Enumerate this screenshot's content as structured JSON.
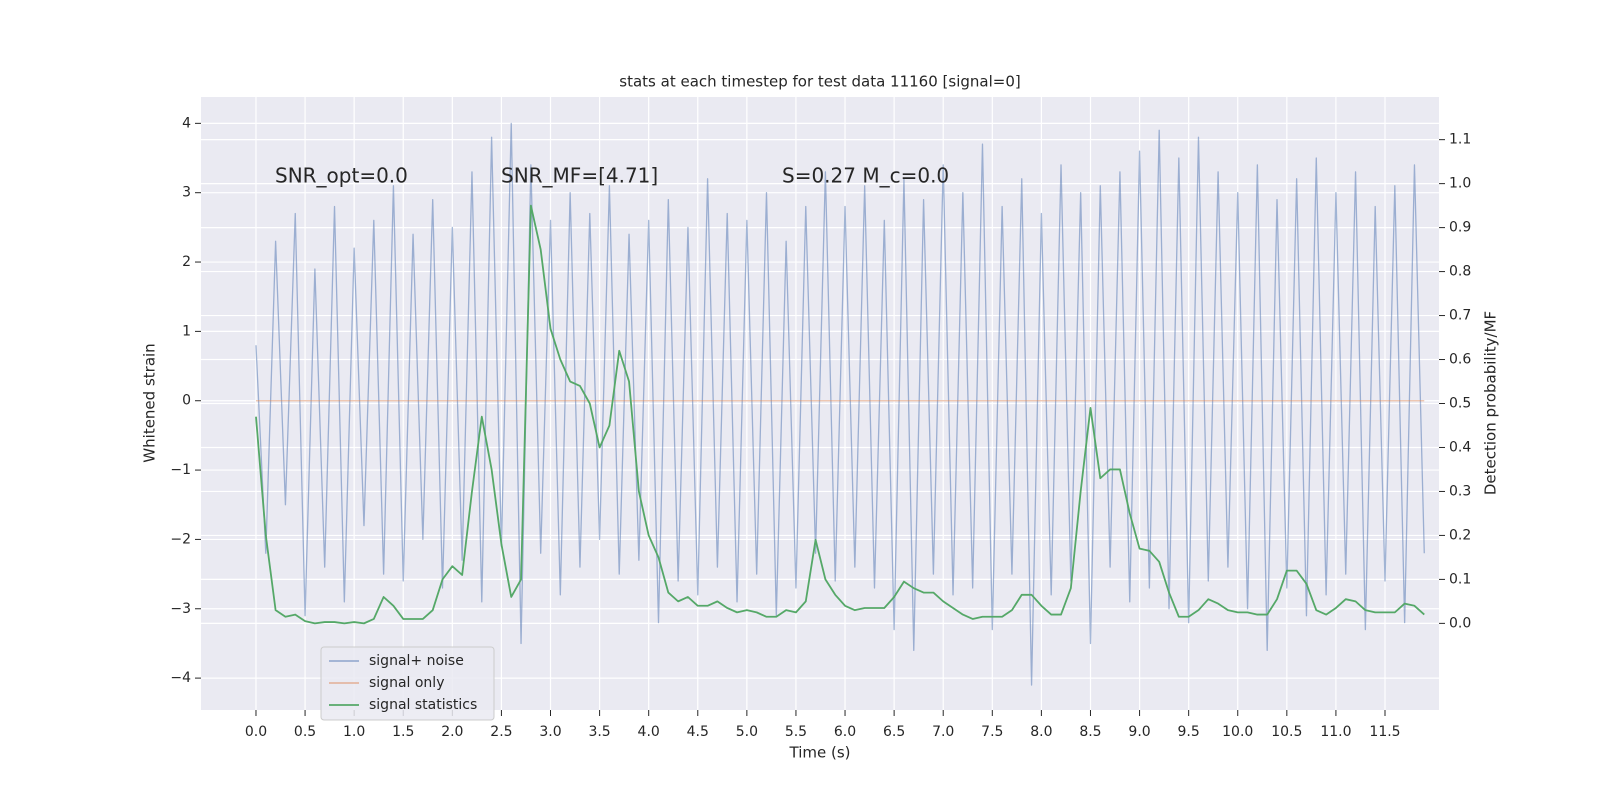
{
  "chart_data": {
    "type": "line",
    "title": "stats at each timestep for test data 11160 [signal=0]",
    "xlabel": "Time (s)",
    "ylabel": "Whitened strain",
    "y2label": "Detection probability/MF",
    "annotations": [
      "SNR_opt=0.0",
      "SNR_MF=[4.71]",
      "S=0.27   M_c=0.0"
    ],
    "x": [
      0,
      0.1,
      0.2,
      0.3,
      0.4,
      0.5,
      0.6,
      0.7,
      0.8,
      0.9,
      1,
      1.1,
      1.2,
      1.3,
      1.4,
      1.5,
      1.6,
      1.7,
      1.8,
      1.9,
      2,
      2.1,
      2.2,
      2.3,
      2.4,
      2.5,
      2.6,
      2.7,
      2.8,
      2.9,
      3,
      3.1,
      3.2,
      3.3,
      3.4,
      3.5,
      3.6,
      3.7,
      3.8,
      3.9,
      4,
      4.1,
      4.2,
      4.3,
      4.4,
      4.5,
      4.6,
      4.7,
      4.8,
      4.9,
      5,
      5.1,
      5.2,
      5.3,
      5.4,
      5.5,
      5.6,
      5.7,
      5.8,
      5.9,
      6,
      6.1,
      6.2,
      6.3,
      6.4,
      6.5,
      6.6,
      6.7,
      6.8,
      6.9,
      7,
      7.1,
      7.2,
      7.3,
      7.4,
      7.5,
      7.6,
      7.7,
      7.8,
      7.9,
      8,
      8.1,
      8.2,
      8.3,
      8.4,
      8.5,
      8.6,
      8.7,
      8.8,
      8.9,
      9,
      9.1,
      9.2,
      9.3,
      9.4,
      9.5,
      9.6,
      9.7,
      9.8,
      9.9,
      10,
      10.1,
      10.2,
      10.3,
      10.4,
      10.5,
      10.6,
      10.7,
      10.8,
      10.9,
      11,
      11.1,
      11.2,
      11.3,
      11.4,
      11.5,
      11.6,
      11.7,
      11.8,
      11.9
    ],
    "series": [
      {
        "name": "signal+ noise",
        "color": "#4c72b0",
        "axis": "y",
        "values": [
          0.8,
          -2.2,
          2.3,
          -1.5,
          2.7,
          -3.1,
          1.9,
          -2.4,
          2.8,
          -2.9,
          2.2,
          -1.8,
          2.6,
          -2.5,
          3.1,
          -2.6,
          2.4,
          -2.0,
          2.9,
          -2.7,
          2.5,
          -2.3,
          3.3,
          -2.9,
          3.8,
          -2.1,
          4.0,
          -3.5,
          3.4,
          -2.2,
          2.6,
          -2.8,
          3.0,
          -2.4,
          2.7,
          -2.0,
          3.1,
          -2.5,
          2.4,
          -2.3,
          2.6,
          -3.2,
          2.9,
          -2.6,
          2.5,
          -2.8,
          3.2,
          -2.4,
          2.7,
          -2.9,
          2.6,
          -2.5,
          3.0,
          -3.1,
          2.3,
          -2.7,
          2.8,
          -2.2,
          3.3,
          -2.6,
          2.8,
          -2.4,
          3.1,
          -2.7,
          2.6,
          -3.3,
          3.2,
          -3.6,
          2.9,
          -2.5,
          3.4,
          -2.8,
          3.0,
          -2.7,
          3.7,
          -3.3,
          2.8,
          -2.5,
          3.2,
          -4.1,
          2.7,
          -2.8,
          3.4,
          -2.6,
          3.0,
          -3.5,
          3.1,
          -2.4,
          3.3,
          -2.9,
          3.6,
          -2.7,
          3.9,
          -3.0,
          3.5,
          -3.2,
          3.8,
          -2.6,
          3.3,
          -2.4,
          3.0,
          -3.0,
          3.4,
          -3.6,
          2.9,
          -2.7,
          3.2,
          -3.1,
          3.5,
          -2.8,
          3.0,
          -2.5,
          3.3,
          -3.3,
          2.8,
          -2.6,
          3.1,
          -3.2,
          3.4,
          -2.2
        ]
      },
      {
        "name": "signal only",
        "color": "#dd8452",
        "axis": "y",
        "values": [
          0,
          0,
          0,
          0,
          0,
          0,
          0,
          0,
          0,
          0,
          0,
          0,
          0,
          0,
          0,
          0,
          0,
          0,
          0,
          0,
          0,
          0,
          0,
          0,
          0,
          0,
          0,
          0,
          0,
          0,
          0,
          0,
          0,
          0,
          0,
          0,
          0,
          0,
          0,
          0,
          0,
          0,
          0,
          0,
          0,
          0,
          0,
          0,
          0,
          0,
          0,
          0,
          0,
          0,
          0,
          0,
          0,
          0,
          0,
          0,
          0,
          0,
          0,
          0,
          0,
          0,
          0,
          0,
          0,
          0,
          0,
          0,
          0,
          0,
          0,
          0,
          0,
          0,
          0,
          0,
          0,
          0,
          0,
          0,
          0,
          0,
          0,
          0,
          0,
          0,
          0,
          0,
          0,
          0,
          0,
          0,
          0,
          0,
          0,
          0,
          0,
          0,
          0,
          0,
          0,
          0,
          0,
          0,
          0,
          0,
          0,
          0,
          0,
          0,
          0,
          0,
          0,
          0,
          0,
          0
        ]
      },
      {
        "name": "signal statistics",
        "color": "#55a868",
        "axis": "y2",
        "values": [
          0.47,
          0.2,
          0.03,
          0.015,
          0.02,
          0.005,
          0.0,
          0.003,
          0.003,
          0.0,
          0.003,
          0.0,
          0.01,
          0.06,
          0.04,
          0.01,
          0.01,
          0.01,
          0.03,
          0.1,
          0.13,
          0.11,
          0.3,
          0.47,
          0.35,
          0.18,
          0.06,
          0.1,
          0.95,
          0.85,
          0.67,
          0.6,
          0.55,
          0.54,
          0.5,
          0.4,
          0.45,
          0.62,
          0.55,
          0.3,
          0.2,
          0.15,
          0.07,
          0.05,
          0.06,
          0.04,
          0.04,
          0.05,
          0.035,
          0.025,
          0.03,
          0.025,
          0.015,
          0.015,
          0.03,
          0.025,
          0.05,
          0.19,
          0.1,
          0.065,
          0.04,
          0.03,
          0.035,
          0.035,
          0.035,
          0.06,
          0.095,
          0.08,
          0.07,
          0.07,
          0.05,
          0.035,
          0.02,
          0.01,
          0.015,
          0.015,
          0.015,
          0.03,
          0.065,
          0.065,
          0.04,
          0.02,
          0.02,
          0.08,
          0.3,
          0.49,
          0.33,
          0.35,
          0.35,
          0.25,
          0.17,
          0.165,
          0.14,
          0.07,
          0.015,
          0.015,
          0.03,
          0.055,
          0.045,
          0.03,
          0.025,
          0.025,
          0.02,
          0.02,
          0.055,
          0.12,
          0.12,
          0.09,
          0.03,
          0.02,
          0.035,
          0.055,
          0.05,
          0.03,
          0.025,
          0.025,
          0.025,
          0.045,
          0.04,
          0.02
        ]
      }
    ],
    "xlim": [
      -0.56,
      12.05
    ],
    "ylim": [
      -4.46,
      4.38
    ],
    "y2lim": [
      -0.197,
      1.197
    ],
    "xticks": [
      {
        "value": 0,
        "label": "0.0"
      },
      0.5,
      {
        "value": 1,
        "label": "1.0"
      },
      1.5,
      {
        "value": 2,
        "label": "2.0"
      },
      2.5,
      {
        "value": 3,
        "label": "3.0"
      },
      3.5,
      {
        "value": 4,
        "label": "4.0"
      },
      4.5,
      {
        "value": 5,
        "label": "5.0"
      },
      5.5,
      {
        "value": 6,
        "label": "6.0"
      },
      6.5,
      {
        "value": 7,
        "label": "7.0"
      },
      7.5,
      {
        "value": 8,
        "label": "8.0"
      },
      8.5,
      {
        "value": 9,
        "label": "9.0"
      },
      9.5,
      {
        "value": 10,
        "label": "10.0"
      },
      10.5,
      {
        "value": 11,
        "label": "11.0"
      },
      11.5
    ],
    "yticks": [
      {
        "value": -4,
        "label": "−4"
      },
      {
        "value": -3,
        "label": "−3"
      },
      {
        "value": -2,
        "label": "−2"
      },
      {
        "value": -1,
        "label": "−1"
      },
      0,
      1,
      2,
      3,
      4
    ],
    "y2ticks": [
      {
        "value": 0,
        "label": "0.0"
      },
      0.1,
      0.2,
      0.3,
      0.4,
      0.5,
      0.6,
      0.7,
      0.8,
      0.9,
      {
        "value": 1,
        "label": "1.0"
      },
      1.1
    ],
    "grid": true,
    "legend": "lower left"
  }
}
